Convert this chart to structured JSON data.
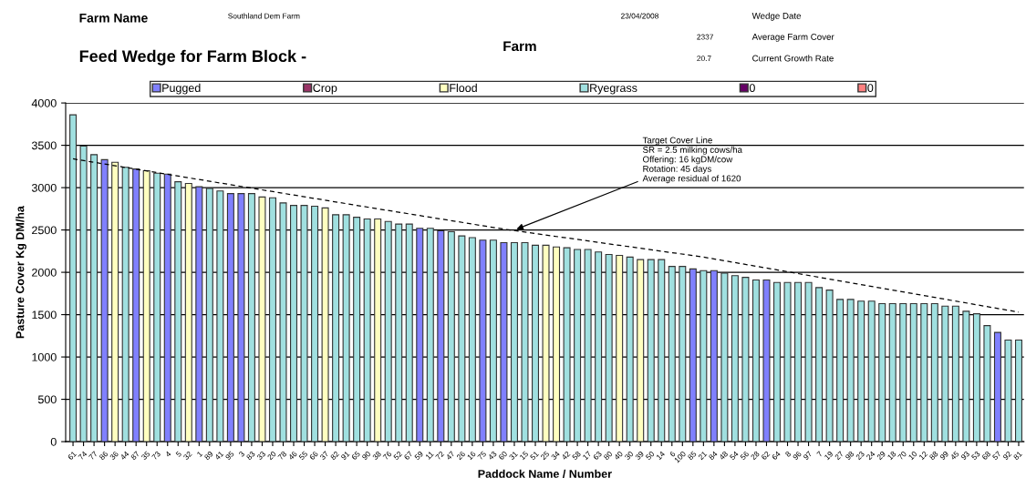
{
  "chart_data": {
    "type": "bar",
    "title": "Feed Wedge for Farm Block -",
    "xlabel": "Paddock Name / Number",
    "ylabel": "Pasture Cover Kg DM/ha",
    "categories": [
      "61",
      "74",
      "77",
      "86",
      "36",
      "44",
      "87",
      "35",
      "73",
      "4",
      "5",
      "32",
      "1",
      "89",
      "41",
      "95",
      "3",
      "83",
      "33",
      "20",
      "78",
      "46",
      "55",
      "66",
      "37",
      "82",
      "91",
      "65",
      "90",
      "38",
      "76",
      "52",
      "67",
      "59",
      "11",
      "72",
      "47",
      "26",
      "16",
      "75",
      "43",
      "60",
      "31",
      "15",
      "51",
      "25",
      "34",
      "42",
      "58",
      "17",
      "63",
      "80",
      "40",
      "30",
      "39",
      "50",
      "14",
      "6",
      "100",
      "85",
      "21",
      "84",
      "48",
      "54",
      "56",
      "28",
      "62",
      "64",
      "8",
      "96",
      "97",
      "7",
      "19",
      "27",
      "98",
      "23",
      "24",
      "29",
      "18",
      "70",
      "10",
      "12",
      "88",
      "99",
      "45",
      "93",
      "53",
      "68",
      "57",
      "92",
      "81"
    ],
    "series": [
      {
        "name": "Pugged",
        "color": "#8080ff",
        "values": [
          null,
          null,
          null,
          3330,
          null,
          null,
          3220,
          null,
          null,
          3160,
          null,
          null,
          3010,
          null,
          null,
          2930,
          2930,
          null,
          null,
          null,
          null,
          null,
          null,
          null,
          null,
          null,
          null,
          null,
          null,
          null,
          null,
          null,
          null,
          2520,
          null,
          2490,
          null,
          null,
          null,
          2380,
          null,
          2350,
          null,
          null,
          null,
          null,
          null,
          null,
          null,
          null,
          null,
          null,
          null,
          null,
          null,
          null,
          null,
          null,
          null,
          2040,
          null,
          2020,
          null,
          null,
          null,
          null,
          1910,
          null,
          null,
          null,
          null,
          null,
          null,
          null,
          null,
          null,
          null,
          null,
          null,
          null,
          null,
          null,
          null,
          null,
          null,
          null,
          null,
          null,
          1290,
          null,
          null
        ]
      },
      {
        "name": "Crop",
        "color": "#993366",
        "values": [
          null,
          null,
          null,
          null,
          null,
          null,
          null,
          null,
          null,
          null,
          null,
          null,
          null,
          null,
          null,
          null,
          null,
          null,
          null,
          null,
          null,
          null,
          null,
          null,
          null,
          null,
          null,
          null,
          null,
          null,
          null,
          null,
          null,
          null,
          null,
          null,
          null,
          null,
          null,
          null,
          null,
          null,
          null,
          null,
          null,
          null,
          null,
          null,
          null,
          null,
          null,
          null,
          null,
          null,
          null,
          null,
          null,
          null,
          null,
          null,
          null,
          null,
          null,
          null,
          null,
          null,
          null,
          null,
          null,
          null,
          null,
          null,
          null,
          null,
          null,
          null,
          null,
          null,
          null,
          null,
          null,
          null,
          null,
          null,
          null,
          null,
          null,
          null,
          null,
          null,
          null
        ]
      },
      {
        "name": "Flood",
        "color": "#ffffc0",
        "values": [
          null,
          null,
          null,
          null,
          3300,
          null,
          null,
          3200,
          null,
          null,
          null,
          3050,
          null,
          null,
          null,
          null,
          null,
          null,
          2890,
          null,
          null,
          null,
          null,
          null,
          2760,
          null,
          null,
          null,
          null,
          2630,
          null,
          null,
          null,
          null,
          null,
          null,
          null,
          null,
          null,
          null,
          null,
          null,
          null,
          null,
          null,
          2320,
          2300,
          null,
          null,
          null,
          null,
          null,
          2200,
          null,
          2150,
          null,
          null,
          null,
          null,
          null,
          null,
          null,
          null,
          null,
          null,
          null,
          null,
          null,
          null,
          null,
          null,
          null,
          null,
          null,
          null,
          null,
          null,
          null,
          null,
          null,
          null,
          null,
          null,
          null,
          null,
          null,
          null,
          null,
          null,
          null,
          null
        ]
      },
      {
        "name": "Ryegrass",
        "color": "#a0e0e0",
        "values": [
          3860,
          3490,
          3390,
          null,
          null,
          3240,
          null,
          null,
          3170,
          null,
          3070,
          null,
          null,
          2990,
          2960,
          null,
          null,
          2930,
          null,
          2880,
          2820,
          2790,
          2790,
          2780,
          null,
          2680,
          2680,
          2650,
          2630,
          null,
          2600,
          2570,
          2570,
          null,
          2520,
          null,
          2480,
          2430,
          2410,
          null,
          2380,
          null,
          2350,
          2350,
          2320,
          null,
          null,
          2290,
          2270,
          2270,
          2240,
          2210,
          null,
          2180,
          null,
          2150,
          2150,
          2070,
          2070,
          null,
          2020,
          null,
          1990,
          1960,
          1940,
          1910,
          null,
          1880,
          1880,
          1880,
          1880,
          1820,
          1790,
          1680,
          1680,
          1660,
          1660,
          1630,
          1630,
          1630,
          1630,
          1630,
          1630,
          1600,
          1600,
          1540,
          1510,
          1370,
          null,
          1200,
          1200
        ]
      },
      {
        "name": "0",
        "color": "#660066",
        "values": [
          null,
          null,
          null,
          null,
          null,
          null,
          null,
          null,
          null,
          null,
          null,
          null,
          null,
          null,
          null,
          null,
          null,
          null,
          null,
          null,
          null,
          null,
          null,
          null,
          null,
          null,
          null,
          null,
          null,
          null,
          null,
          null,
          null,
          null,
          null,
          null,
          null,
          null,
          null,
          null,
          null,
          null,
          null,
          null,
          null,
          null,
          null,
          null,
          null,
          null,
          null,
          null,
          null,
          null,
          null,
          null,
          null,
          null,
          null,
          null,
          null,
          null,
          null,
          null,
          null,
          null,
          null,
          null,
          null,
          null,
          null,
          null,
          null,
          null,
          null,
          null,
          null,
          null,
          null,
          null,
          null,
          null,
          null,
          null,
          null,
          null,
          null,
          null,
          null,
          null,
          null
        ]
      },
      {
        "name": "0",
        "color": "#ff8080",
        "values": [
          null,
          null,
          null,
          null,
          null,
          null,
          null,
          null,
          null,
          null,
          null,
          null,
          null,
          null,
          null,
          null,
          null,
          null,
          null,
          null,
          null,
          null,
          null,
          null,
          null,
          null,
          null,
          null,
          null,
          null,
          null,
          null,
          null,
          null,
          null,
          null,
          null,
          null,
          null,
          null,
          null,
          null,
          null,
          null,
          null,
          null,
          null,
          null,
          null,
          null,
          null,
          null,
          null,
          null,
          null,
          null,
          null,
          null,
          null,
          null,
          null,
          null,
          null,
          null,
          null,
          null,
          null,
          null,
          null,
          null,
          null,
          null,
          null,
          null,
          null,
          null,
          null,
          null,
          null,
          null,
          null,
          null,
          null,
          null,
          null,
          null,
          null,
          null,
          null,
          null,
          null
        ]
      },
      {
        "type": "line",
        "color": "#000000",
        "line_style": "dashed",
        "x": [
          "61",
          "38",
          "60",
          "21",
          "81"
        ],
        "values": [
          3340,
          2750,
          2510,
          2180,
          1530
        ]
      }
    ],
    "ylim": [
      0,
      4000
    ],
    "yticks": [
      0,
      500,
      1000,
      1500,
      2000,
      2500,
      3000,
      3500,
      4000
    ],
    "grid": "y",
    "legend": "top",
    "annotations": [
      {
        "text": "Target Cover Line\nSR = 2.5 milking cows/ha\nOffering: 16 kgDM/cow\nRotation: 45 days\nAverage residual of 1620",
        "x": "31",
        "y": 2500
      },
      "Farm Name",
      "Southland Dem Farm",
      "23/04/2008",
      "Wedge Date",
      "Farm",
      "2337",
      "Average Farm Cover",
      "20.7",
      "Current Growth Rate"
    ]
  }
}
